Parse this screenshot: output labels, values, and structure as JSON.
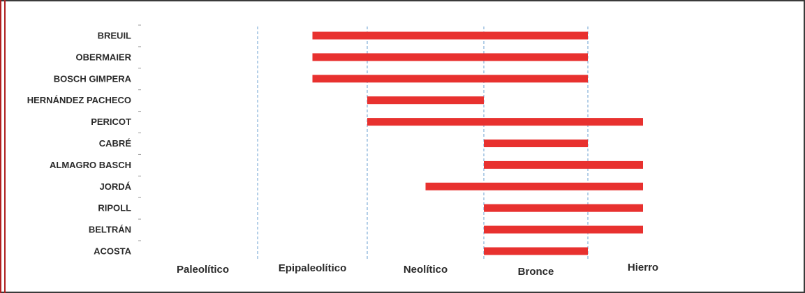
{
  "chart_data": {
    "type": "bar",
    "orientation": "horizontal-range",
    "title": "",
    "xlabel": "",
    "ylabel": "",
    "periods": [
      "Paleolítico",
      "Epipaleolítico",
      "Neolítico",
      "Bronce",
      "Hierro"
    ],
    "period_boundaries": [
      1,
      2,
      3,
      4
    ],
    "x_range": [
      0,
      5
    ],
    "rows": [
      {
        "label": "BREUIL",
        "start": 1.5,
        "end": 4.0
      },
      {
        "label": "OBERMAIER",
        "start": 1.5,
        "end": 4.0
      },
      {
        "label": "BOSCH GIMPERA",
        "start": 1.5,
        "end": 4.0
      },
      {
        "label": "HERNÁNDEZ PACHECO",
        "start": 2.0,
        "end": 3.0
      },
      {
        "label": "PERICOT",
        "start": 2.0,
        "end": 4.5
      },
      {
        "label": "CABRÉ",
        "start": 3.0,
        "end": 4.0
      },
      {
        "label": "ALMAGRO BASCH",
        "start": 3.0,
        "end": 4.5
      },
      {
        "label": "JORDÁ",
        "start": 2.5,
        "end": 4.5
      },
      {
        "label": "RIPOLL",
        "start": 3.0,
        "end": 4.5
      },
      {
        "label": "BELTRÁN",
        "start": 3.0,
        "end": 4.5
      },
      {
        "label": "ACOSTA",
        "start": 3.0,
        "end": 4.0
      }
    ],
    "grid": false,
    "colors": {
      "bar": "#e8312f",
      "divider": "#6a9fd0",
      "text": "#2a2a2a"
    }
  }
}
